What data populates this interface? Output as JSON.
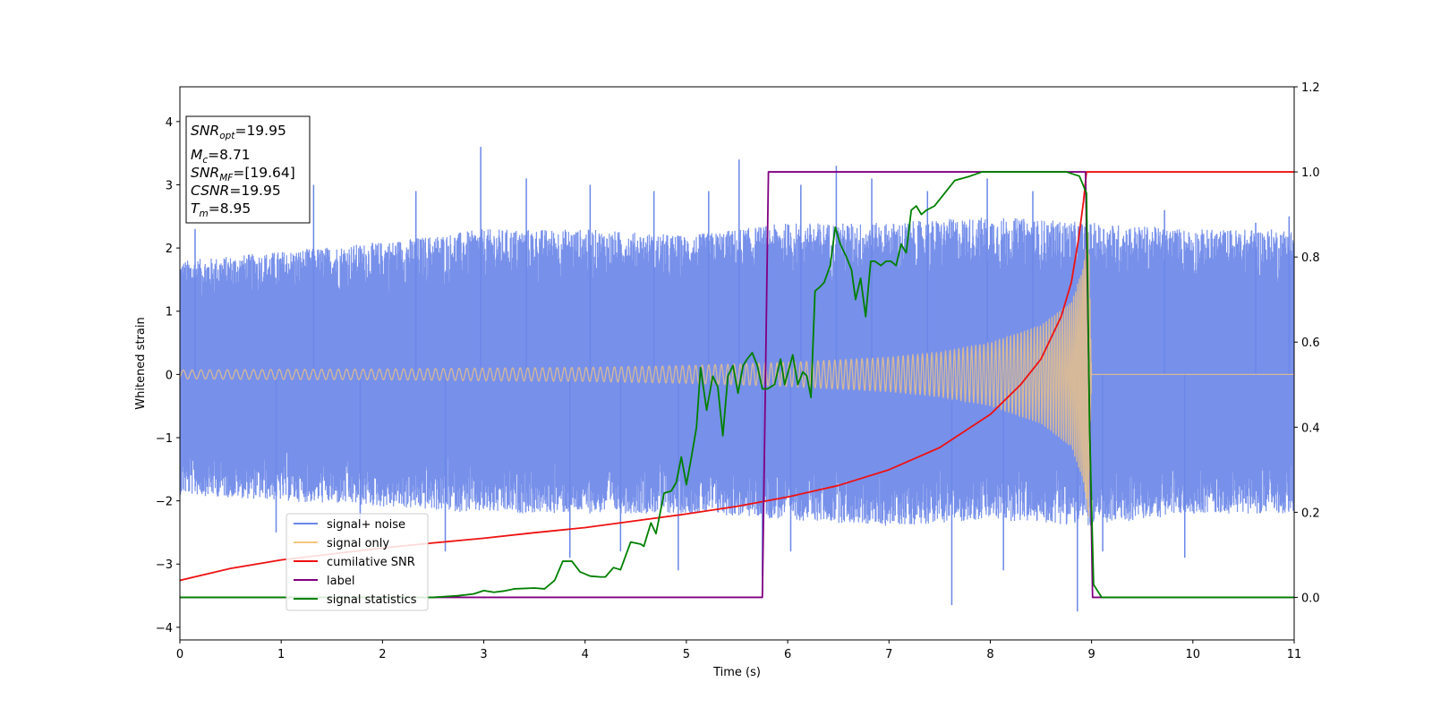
{
  "chart_data": {
    "type": "line",
    "xlabel": "Time (s)",
    "ylabel": "Whitened strain",
    "xlim": [
      0,
      11
    ],
    "ylim": [
      -4.2,
      4.55
    ],
    "ylim_right": [
      -0.1,
      1.2
    ],
    "x_ticks": [
      0,
      1,
      2,
      3,
      4,
      5,
      6,
      7,
      8,
      9,
      10,
      11
    ],
    "y_ticks": [
      -4,
      -3,
      -2,
      -1,
      0,
      1,
      2,
      3,
      4
    ],
    "y_ticks_right": [
      0.0,
      0.2,
      0.4,
      0.6,
      0.8,
      1.0,
      1.2
    ],
    "grid": false,
    "legend_position": "lower-left",
    "info_box": {
      "snr_opt": "19.95",
      "mc": "8.71",
      "snr_mf": "[19.64]",
      "csnr": "19.95",
      "tm": "8.95"
    },
    "series": [
      {
        "name": "signal+ noise",
        "color": "#6b87e8",
        "axis": "left",
        "description": "whitened strain noise band",
        "envelope_upper": [
          [
            0,
            1.8
          ],
          [
            2,
            2.1
          ],
          [
            3,
            2.3
          ],
          [
            4,
            2.3
          ],
          [
            5,
            2.2
          ],
          [
            6,
            2.4
          ],
          [
            7,
            2.4
          ],
          [
            8,
            2.5
          ],
          [
            9,
            2.4
          ],
          [
            10,
            2.3
          ],
          [
            11,
            2.3
          ]
        ],
        "envelope_lower": [
          [
            0,
            -1.9
          ],
          [
            2,
            -2.1
          ],
          [
            3,
            -2.2
          ],
          [
            4,
            -2.2
          ],
          [
            5,
            -2.2
          ],
          [
            6,
            -2.3
          ],
          [
            7,
            -2.4
          ],
          [
            8,
            -2.3
          ],
          [
            9,
            -2.4
          ],
          [
            10,
            -2.2
          ],
          [
            11,
            -2.2
          ]
        ],
        "spikes": [
          [
            0.15,
            2.3
          ],
          [
            0.95,
            -2.5
          ],
          [
            1.32,
            3.0
          ],
          [
            1.78,
            -2.4
          ],
          [
            2.33,
            2.9
          ],
          [
            2.62,
            -2.8
          ],
          [
            2.97,
            3.6
          ],
          [
            3.42,
            3.1
          ],
          [
            3.85,
            -2.9
          ],
          [
            4.05,
            3.0
          ],
          [
            4.35,
            -2.8
          ],
          [
            4.68,
            2.9
          ],
          [
            4.92,
            -3.1
          ],
          [
            5.22,
            2.9
          ],
          [
            5.52,
            3.4
          ],
          [
            5.75,
            -3.2
          ],
          [
            6.03,
            -2.8
          ],
          [
            6.13,
            3.0
          ],
          [
            6.48,
            3.3
          ],
          [
            6.83,
            3.1
          ],
          [
            7.38,
            2.9
          ],
          [
            7.62,
            -3.65
          ],
          [
            7.97,
            3.1
          ],
          [
            8.13,
            -3.1
          ],
          [
            8.42,
            2.9
          ],
          [
            8.86,
            -3.75
          ],
          [
            9.11,
            -2.8
          ],
          [
            9.72,
            2.6
          ],
          [
            9.92,
            -2.9
          ],
          [
            10.62,
            2.4
          ],
          [
            10.95,
            2.5
          ]
        ]
      },
      {
        "name": "signal only",
        "color": "#f5c77e",
        "axis": "left",
        "description": "chirp waveform amplitude envelope, ends at merger",
        "amplitude_envelope": [
          [
            0,
            0.07
          ],
          [
            1,
            0.08
          ],
          [
            2,
            0.085
          ],
          [
            3,
            0.1
          ],
          [
            4,
            0.11
          ],
          [
            5,
            0.14
          ],
          [
            6,
            0.19
          ],
          [
            7,
            0.27
          ],
          [
            7.5,
            0.35
          ],
          [
            8,
            0.5
          ],
          [
            8.5,
            0.78
          ],
          [
            8.8,
            1.15
          ],
          [
            8.92,
            1.7
          ],
          [
            8.97,
            2.4
          ],
          [
            9.0,
            0
          ]
        ],
        "flat_after": 9.0
      },
      {
        "name": "cumilative SNR",
        "color": "#ee1111",
        "axis": "right",
        "points": [
          [
            0,
            0.04
          ],
          [
            0.5,
            0.068
          ],
          [
            1,
            0.088
          ],
          [
            1.5,
            0.102
          ],
          [
            2,
            0.116
          ],
          [
            2.5,
            0.128
          ],
          [
            3,
            0.139
          ],
          [
            3.5,
            0.152
          ],
          [
            4,
            0.164
          ],
          [
            4.5,
            0.18
          ],
          [
            5,
            0.196
          ],
          [
            5.5,
            0.214
          ],
          [
            6,
            0.236
          ],
          [
            6.5,
            0.263
          ],
          [
            7,
            0.3
          ],
          [
            7.5,
            0.352
          ],
          [
            8,
            0.43
          ],
          [
            8.3,
            0.5
          ],
          [
            8.5,
            0.56
          ],
          [
            8.7,
            0.66
          ],
          [
            8.8,
            0.74
          ],
          [
            8.87,
            0.84
          ],
          [
            8.92,
            0.93
          ],
          [
            8.95,
            1.0
          ],
          [
            11,
            1.0
          ]
        ]
      },
      {
        "name": "label",
        "color": "#800080",
        "axis": "right",
        "points": [
          [
            0,
            0.0
          ],
          [
            5.75,
            0.0
          ],
          [
            5.81,
            1.0
          ],
          [
            8.94,
            1.0
          ],
          [
            9.01,
            0.0
          ],
          [
            11,
            0.0
          ]
        ]
      },
      {
        "name": "signal statistics",
        "color": "#008000",
        "axis": "right",
        "points": [
          [
            0,
            0.0
          ],
          [
            2.5,
            0.0
          ],
          [
            2.75,
            0.004
          ],
          [
            2.9,
            0.008
          ],
          [
            3.0,
            0.016
          ],
          [
            3.1,
            0.012
          ],
          [
            3.2,
            0.015
          ],
          [
            3.3,
            0.02
          ],
          [
            3.5,
            0.022
          ],
          [
            3.6,
            0.02
          ],
          [
            3.7,
            0.04
          ],
          [
            3.78,
            0.085
          ],
          [
            3.87,
            0.085
          ],
          [
            3.95,
            0.06
          ],
          [
            4.05,
            0.05
          ],
          [
            4.15,
            0.048
          ],
          [
            4.2,
            0.048
          ],
          [
            4.28,
            0.07
          ],
          [
            4.35,
            0.065
          ],
          [
            4.45,
            0.13
          ],
          [
            4.55,
            0.125
          ],
          [
            4.58,
            0.12
          ],
          [
            4.65,
            0.175
          ],
          [
            4.7,
            0.15
          ],
          [
            4.78,
            0.245
          ],
          [
            4.85,
            0.25
          ],
          [
            4.9,
            0.27
          ],
          [
            4.95,
            0.33
          ],
          [
            5.0,
            0.265
          ],
          [
            5.05,
            0.33
          ],
          [
            5.1,
            0.4
          ],
          [
            5.14,
            0.54
          ],
          [
            5.2,
            0.44
          ],
          [
            5.26,
            0.52
          ],
          [
            5.31,
            0.495
          ],
          [
            5.36,
            0.38
          ],
          [
            5.41,
            0.52
          ],
          [
            5.46,
            0.545
          ],
          [
            5.51,
            0.48
          ],
          [
            5.56,
            0.545
          ],
          [
            5.6,
            0.56
          ],
          [
            5.65,
            0.575
          ],
          [
            5.7,
            0.545
          ],
          [
            5.75,
            0.49
          ],
          [
            5.8,
            0.49
          ],
          [
            5.87,
            0.5
          ],
          [
            5.93,
            0.56
          ],
          [
            5.97,
            0.5
          ],
          [
            6.05,
            0.57
          ],
          [
            6.1,
            0.5
          ],
          [
            6.15,
            0.53
          ],
          [
            6.19,
            0.52
          ],
          [
            6.23,
            0.47
          ],
          [
            6.27,
            0.72
          ],
          [
            6.32,
            0.73
          ],
          [
            6.36,
            0.74
          ],
          [
            6.42,
            0.78
          ],
          [
            6.47,
            0.87
          ],
          [
            6.52,
            0.83
          ],
          [
            6.58,
            0.8
          ],
          [
            6.63,
            0.77
          ],
          [
            6.67,
            0.7
          ],
          [
            6.72,
            0.75
          ],
          [
            6.77,
            0.66
          ],
          [
            6.82,
            0.79
          ],
          [
            6.86,
            0.79
          ],
          [
            6.92,
            0.78
          ],
          [
            6.97,
            0.79
          ],
          [
            7.02,
            0.79
          ],
          [
            7.07,
            0.78
          ],
          [
            7.12,
            0.83
          ],
          [
            7.17,
            0.81
          ],
          [
            7.22,
            0.91
          ],
          [
            7.27,
            0.92
          ],
          [
            7.32,
            0.9
          ],
          [
            7.37,
            0.91
          ],
          [
            7.45,
            0.92
          ],
          [
            7.55,
            0.95
          ],
          [
            7.65,
            0.98
          ],
          [
            7.8,
            0.99
          ],
          [
            7.92,
            1.0
          ],
          [
            8.3,
            1.0
          ],
          [
            8.5,
            1.0
          ],
          [
            8.75,
            1.0
          ],
          [
            8.88,
            0.99
          ],
          [
            8.95,
            0.95
          ],
          [
            8.98,
            0.4
          ],
          [
            9.02,
            0.03
          ],
          [
            9.1,
            0.0
          ],
          [
            11,
            0.0
          ]
        ]
      }
    ]
  }
}
